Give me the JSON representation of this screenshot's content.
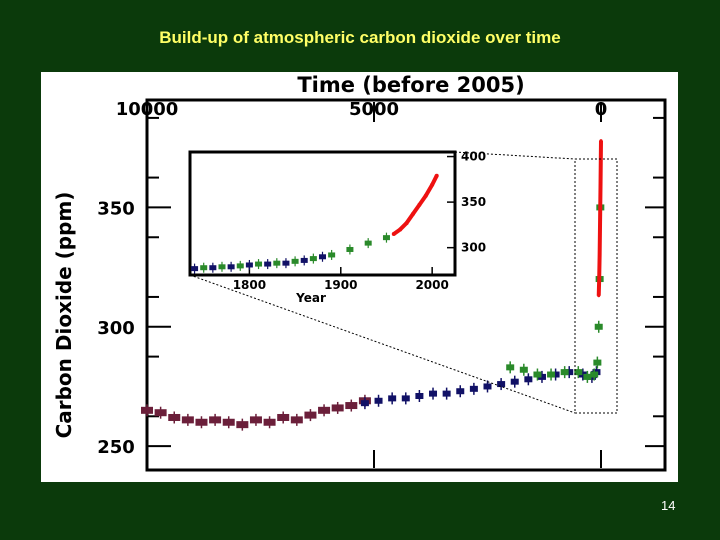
{
  "slide": {
    "title": "Build-up of atmospheric carbon dioxide over time",
    "page_number": "14"
  },
  "chart_data": [
    {
      "type": "scatter",
      "title": "",
      "xlabel": "Time (before 2005)",
      "ylabel": "Carbon Dioxide (ppm)",
      "x_ticks": [
        10000,
        5000,
        0
      ],
      "y_ticks": [
        250,
        300,
        350
      ],
      "xlim": [
        10000,
        0
      ],
      "ylim": [
        240,
        395
      ],
      "x_reversed": true,
      "grid": false,
      "series": [
        {
          "color": "#6b1f3a",
          "x": [
            10000,
            9700,
            9400,
            9100,
            8800,
            8500,
            8200,
            7900,
            7600,
            7300,
            7000,
            6700,
            6400,
            6100,
            5800,
            5500,
            5200
          ],
          "y": [
            265,
            264,
            262,
            261,
            260,
            261,
            260,
            259,
            261,
            260,
            262,
            261,
            263,
            265,
            266,
            267,
            269
          ]
        },
        {
          "color": "#111166",
          "x": [
            5200,
            4900,
            4600,
            4300,
            4000,
            3700,
            3400,
            3100,
            2800,
            2500,
            2200,
            1900,
            1600,
            1300,
            1000,
            700,
            400,
            200,
            100
          ],
          "y": [
            268,
            269,
            270,
            270,
            271,
            272,
            272,
            273,
            274,
            275,
            276,
            277,
            278,
            279,
            280,
            281,
            280,
            279,
            281
          ]
        },
        {
          "color": "#2a8a2a",
          "x": [
            2000,
            1700,
            1400,
            1100,
            800,
            500,
            300,
            150,
            80,
            50,
            30,
            15
          ],
          "y": [
            283,
            282,
            280,
            280,
            281,
            281,
            279,
            280,
            285,
            300,
            320,
            350
          ]
        },
        {
          "color": "#ee1111",
          "x": [
            50,
            40,
            30,
            20,
            10,
            0
          ],
          "y": [
            313,
            320,
            330,
            345,
            360,
            378
          ]
        }
      ]
    },
    {
      "type": "scatter",
      "title": "",
      "xlabel": "Year",
      "ylabel": "",
      "x_ticks": [
        1800,
        1900,
        2000
      ],
      "y_ticks": [
        300,
        350,
        400
      ],
      "xlim": [
        1735,
        2025
      ],
      "ylim": [
        270,
        405
      ],
      "grid": false,
      "series": [
        {
          "color": "#111166",
          "x": [
            1740,
            1760,
            1780,
            1800,
            1820,
            1840,
            1860,
            1880
          ],
          "y": [
            277,
            278,
            279,
            281,
            282,
            283,
            286,
            290
          ]
        },
        {
          "color": "#2a8a2a",
          "x": [
            1750,
            1770,
            1790,
            1810,
            1830,
            1850,
            1870,
            1890,
            1910,
            1930,
            1950
          ],
          "y": [
            278,
            279,
            280,
            282,
            283,
            285,
            288,
            292,
            298,
            305,
            311
          ]
        },
        {
          "color": "#ee1111",
          "x": [
            1958,
            1965,
            1972,
            1979,
            1986,
            1993,
            2000,
            2005
          ],
          "y": [
            315,
            320,
            327,
            337,
            347,
            357,
            369,
            379
          ]
        }
      ]
    }
  ]
}
